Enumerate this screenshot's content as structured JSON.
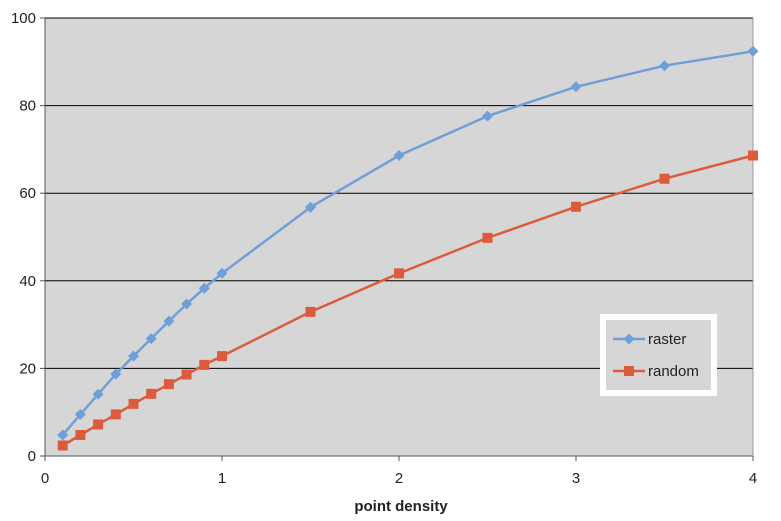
{
  "chart_data": {
    "type": "line",
    "xlabel": "point density",
    "ylabel": "",
    "xlim": [
      0,
      4
    ],
    "ylim": [
      0,
      100
    ],
    "xticks": [
      0,
      1,
      2,
      3,
      4
    ],
    "yticks": [
      0,
      20,
      40,
      60,
      80,
      100
    ],
    "grid": "horizontal",
    "legend_position": "right",
    "background_color": "#d6d6d6",
    "series": [
      {
        "name": "raster",
        "color": "#6f9fd8",
        "marker": "diamond",
        "x": [
          0.1,
          0.2,
          0.3,
          0.4,
          0.5,
          0.6,
          0.7,
          0.8,
          0.9,
          1.0,
          1.5,
          2.0,
          2.5,
          3.0,
          3.5,
          4.0
        ],
        "y": [
          4.8,
          9.5,
          14.1,
          18.7,
          22.8,
          26.8,
          30.8,
          34.7,
          38.3,
          41.7,
          56.8,
          68.6,
          77.6,
          84.3,
          89.1,
          92.4
        ]
      },
      {
        "name": "random",
        "color": "#dc5b3c",
        "marker": "square",
        "x": [
          0.1,
          0.2,
          0.3,
          0.4,
          0.5,
          0.6,
          0.7,
          0.8,
          0.9,
          1.0,
          1.5,
          2.0,
          2.5,
          3.0,
          3.5,
          4.0
        ],
        "y": [
          2.4,
          4.8,
          7.2,
          9.5,
          11.9,
          14.2,
          16.4,
          18.6,
          20.8,
          22.8,
          32.9,
          41.7,
          49.8,
          56.9,
          63.3,
          68.6
        ]
      }
    ]
  }
}
